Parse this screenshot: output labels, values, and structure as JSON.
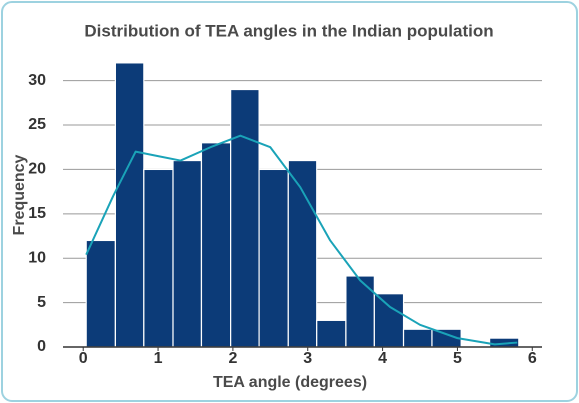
{
  "chart_data": {
    "type": "histogram",
    "title": "Distribution of TEA angles in the Indian population",
    "xlabel": "TEA angle (degrees)",
    "ylabel": "Frequency",
    "bins": [
      0.04,
      0.43,
      0.81,
      1.2,
      1.58,
      1.97,
      2.35,
      2.74,
      3.12,
      3.51,
      3.89,
      4.28,
      4.66,
      5.05,
      5.43,
      5.82
    ],
    "values": [
      12,
      32,
      20,
      21,
      23,
      29,
      20,
      21,
      3,
      8,
      6,
      2,
      2,
      0,
      1
    ],
    "color": "#0c3b78",
    "kde": {
      "color": "#1aa3b8",
      "x": [
        0.04,
        0.4,
        0.7,
        1.0,
        1.3,
        1.7,
        2.1,
        2.5,
        2.9,
        3.3,
        3.7,
        4.1,
        4.5,
        5.0,
        5.5,
        5.8
      ],
      "values": [
        10.4,
        17,
        22,
        21.5,
        21,
        22.5,
        23.8,
        22.5,
        18,
        12,
        7.5,
        4.5,
        2.5,
        1,
        0.3,
        0.5
      ]
    },
    "xlim": [
      -0.27,
      6.13
    ],
    "xticks": [
      0,
      1,
      2,
      3,
      4,
      5,
      6
    ],
    "ylim": [
      0,
      33
    ],
    "yticks": [
      0,
      5,
      10,
      15,
      20,
      25,
      30
    ],
    "grid": true
  }
}
